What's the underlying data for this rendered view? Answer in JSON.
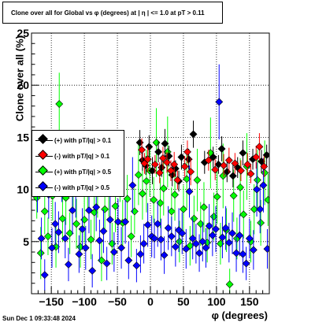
{
  "title": "Clone  over all for Global vs φ  (degrees) at |  η  | <= 1.0 at pT > 0.11",
  "timestamp": "Sun Dec  1 09:33:48 2024",
  "chart_data": {
    "type": "scatter",
    "xlabel": "φ (degrees)",
    "ylabel": "Clone  over all (%)",
    "xlim": [
      -180,
      180
    ],
    "ylim": [
      0,
      25
    ],
    "x_ticks": [
      -150,
      -100,
      -50,
      0,
      50,
      100,
      150
    ],
    "x_tick_labels": [
      "−150",
      "−100",
      "−50",
      "0",
      "50",
      "100",
      "150"
    ],
    "y_ticks": [
      5,
      10,
      15,
      20,
      25
    ],
    "y_tick_labels": [
      "5",
      "10",
      "15",
      "20",
      "25"
    ],
    "grid": true,
    "legend_position": "left-middle",
    "series": [
      {
        "name": "(+) with pT/|q| > 0.1",
        "color": "#000000",
        "points": [
          [
            -7,
            12.3,
            0.9
          ],
          [
            -2,
            14.1,
            1.1
          ],
          [
            -12,
            12.8,
            1.0
          ],
          [
            -16,
            14.5,
            1.2
          ],
          [
            3,
            11.8,
            1.3
          ],
          [
            12,
            13.6,
            1.0
          ],
          [
            17,
            12.1,
            0.9
          ],
          [
            22,
            14.4,
            1.4
          ],
          [
            28,
            13.2,
            1.0
          ],
          [
            33,
            11.4,
            1.1
          ],
          [
            38,
            12.0,
            0.8
          ],
          [
            43,
            10.8,
            1.0
          ],
          [
            47,
            13.1,
            1.2
          ],
          [
            58,
            12.9,
            1.0
          ],
          [
            65,
            15.3,
            1.3
          ],
          [
            82,
            12.6,
            1.1
          ],
          [
            95,
            13.1,
            1.0
          ],
          [
            103,
            12.4,
            0.9
          ],
          [
            108,
            13.9,
            1.2
          ],
          [
            116,
            11.7,
            1.0
          ],
          [
            125,
            11.3,
            1.1
          ],
          [
            132,
            12.1,
            1.0
          ],
          [
            140,
            13.5,
            1.2
          ],
          [
            155,
            12.9,
            1.0
          ],
          [
            168,
            12.7,
            1.1
          ],
          [
            176,
            13.3,
            1.0
          ]
        ]
      },
      {
        "name": "(-) with pT/|q| > 0.1",
        "color": "#ff0000",
        "points": [
          [
            -9,
            12.5,
            1.0
          ],
          [
            -4,
            12.9,
            1.2
          ],
          [
            -13,
            13.8,
            1.1
          ],
          [
            7,
            12.4,
            0.9
          ],
          [
            14,
            11.6,
            1.0
          ],
          [
            19,
            13.0,
            1.1
          ],
          [
            25,
            12.6,
            1.0
          ],
          [
            31,
            11.8,
            1.0
          ],
          [
            36,
            12.4,
            1.2
          ],
          [
            41,
            10.9,
            0.9
          ],
          [
            52,
            12.2,
            1.0
          ],
          [
            56,
            13.6,
            1.1
          ],
          [
            61,
            11.7,
            1.3
          ],
          [
            88,
            12.8,
            1.0
          ],
          [
            98,
            11.9,
            1.0
          ],
          [
            111,
            12.3,
            1.1
          ],
          [
            119,
            12.8,
            1.2
          ],
          [
            128,
            12.5,
            1.0
          ],
          [
            137,
            11.8,
            1.0
          ],
          [
            147,
            12.4,
            1.1
          ],
          [
            152,
            11.5,
            0.9
          ],
          [
            160,
            13.1,
            1.1
          ],
          [
            165,
            14.1,
            1.3
          ],
          [
            172,
            12.2,
            1.0
          ]
        ]
      },
      {
        "name": "(+) with pT/|q| > 0.5",
        "color": "#00ff00",
        "points": [
          [
            -172,
            9.2,
            2.0
          ],
          [
            -166,
            3.9,
            2.5
          ],
          [
            -160,
            7.9,
            2.2
          ],
          [
            -155,
            5.5,
            1.8
          ],
          [
            -148,
            9.4,
            2.4
          ],
          [
            -143,
            4.5,
            2.0
          ],
          [
            -138,
            18.2,
            3.0
          ],
          [
            -133,
            7.2,
            2.2
          ],
          [
            -128,
            9.2,
            2.6
          ],
          [
            -122,
            5.8,
            2.0
          ],
          [
            -117,
            10.5,
            2.8
          ],
          [
            -112,
            6.7,
            2.4
          ],
          [
            -106,
            4.5,
            2.0
          ],
          [
            -100,
            7.1,
            2.2
          ],
          [
            -95,
            11.2,
            3.1
          ],
          [
            -90,
            5.2,
            1.9
          ],
          [
            -85,
            7.8,
            2.5
          ],
          [
            -80,
            9.9,
            2.6
          ],
          [
            -74,
            3.2,
            2.0
          ],
          [
            -69,
            8.1,
            2.3
          ],
          [
            -63,
            10.2,
            2.8
          ],
          [
            -58,
            4.8,
            2.0
          ],
          [
            -53,
            8.4,
            2.5
          ],
          [
            -46,
            12.0,
            3.2
          ],
          [
            -42,
            6.8,
            2.2
          ],
          [
            -35,
            9.1,
            2.3
          ],
          [
            -29,
            5.5,
            2.0
          ],
          [
            -24,
            7.9,
            2.2
          ],
          [
            -18,
            11.4,
            2.9
          ],
          [
            -12,
            9.6,
            2.5
          ],
          [
            -6,
            10.8,
            3.0
          ],
          [
            -1,
            11.8,
            2.5
          ],
          [
            5,
            9.0,
            2.2
          ],
          [
            9,
            14.5,
            3.3
          ],
          [
            15,
            8.7,
            2.4
          ],
          [
            20,
            10.1,
            2.6
          ],
          [
            26,
            13.6,
            3.4
          ],
          [
            32,
            7.9,
            2.3
          ],
          [
            37,
            9.5,
            2.5
          ],
          [
            44,
            5.0,
            2.0
          ],
          [
            50,
            8.1,
            2.3
          ],
          [
            55,
            11.0,
            2.8
          ],
          [
            60,
            4.6,
            1.9
          ],
          [
            66,
            7.2,
            2.2
          ],
          [
            71,
            10.9,
            3.0
          ],
          [
            76,
            6.7,
            2.1
          ],
          [
            81,
            8.3,
            2.4
          ],
          [
            86,
            4.9,
            1.9
          ],
          [
            91,
            13.5,
            3.4
          ],
          [
            96,
            7.4,
            2.3
          ],
          [
            101,
            9.3,
            2.6
          ],
          [
            106,
            4.8,
            2.0
          ],
          [
            110,
            11.3,
            3.1
          ],
          [
            115,
            6.1,
            2.1
          ],
          [
            120,
            0.9,
            1.5
          ],
          [
            126,
            9.4,
            2.5
          ],
          [
            131,
            5.3,
            2.0
          ],
          [
            136,
            10.2,
            2.8
          ],
          [
            141,
            7.6,
            2.3
          ],
          [
            146,
            12.2,
            3.2
          ],
          [
            152,
            5.0,
            2.0
          ],
          [
            157,
            8.1,
            2.4
          ],
          [
            162,
            10.9,
            2.9
          ],
          [
            167,
            6.8,
            2.2
          ],
          [
            173,
            11.6,
            3.1
          ],
          [
            178,
            9.0,
            2.5
          ]
        ]
      },
      {
        "name": "(-) with pT/|q| > 0.5",
        "color": "#0000ff",
        "points": [
          [
            -171,
            10.2,
            2.4
          ],
          [
            -165,
            5.3,
            2.0
          ],
          [
            -160,
            1.8,
            1.5
          ],
          [
            -154,
            9.5,
            2.3
          ],
          [
            -149,
            4.4,
            1.9
          ],
          [
            -144,
            6.7,
            2.1
          ],
          [
            -139,
            5.9,
            2.0
          ],
          [
            -134,
            11.6,
            2.8
          ],
          [
            -129,
            5.3,
            1.9
          ],
          [
            -124,
            2.8,
            1.6
          ],
          [
            -118,
            8.0,
            2.3
          ],
          [
            -113,
            9.9,
            2.6
          ],
          [
            -108,
            3.8,
            1.8
          ],
          [
            -103,
            6.2,
            2.0
          ],
          [
            -98,
            4.4,
            2.1
          ],
          [
            -93,
            8.0,
            2.2
          ],
          [
            -88,
            2.2,
            1.6
          ],
          [
            -82,
            8.3,
            2.3
          ],
          [
            -77,
            5.1,
            2.0
          ],
          [
            -71,
            6.0,
            2.1
          ],
          [
            -66,
            2.9,
            1.6
          ],
          [
            -61,
            7.1,
            2.2
          ],
          [
            -55,
            4.0,
            1.9
          ],
          [
            -49,
            6.9,
            2.2
          ],
          [
            -44,
            4.4,
            2.0
          ],
          [
            -38,
            6.9,
            2.1
          ],
          [
            -33,
            3.2,
            1.8
          ],
          [
            -27,
            10.4,
            2.7
          ],
          [
            -21,
            2.7,
            1.6
          ],
          [
            -15,
            3.8,
            1.8
          ],
          [
            -10,
            4.8,
            1.9
          ],
          [
            -4,
            6.6,
            2.1
          ],
          [
            2,
            5.5,
            2.0
          ],
          [
            6,
            5.3,
            1.9
          ],
          [
            11,
            6.7,
            2.2
          ],
          [
            16,
            5.2,
            2.0
          ],
          [
            21,
            3.7,
            1.8
          ],
          [
            27,
            6.3,
            2.1
          ],
          [
            32,
            5.5,
            1.9
          ],
          [
            38,
            4.5,
            1.9
          ],
          [
            43,
            6.1,
            2.1
          ],
          [
            48,
            5.8,
            2.0
          ],
          [
            54,
            4.3,
            1.9
          ],
          [
            59,
            9.8,
            2.5
          ],
          [
            64,
            5.3,
            2.0
          ],
          [
            69,
            4.8,
            1.9
          ],
          [
            74,
            3.9,
            1.8
          ],
          [
            79,
            5.0,
            1.9
          ],
          [
            84,
            4.4,
            1.9
          ],
          [
            89,
            6.5,
            2.1
          ],
          [
            94,
            5.6,
            2.0
          ],
          [
            99,
            6.2,
            2.2
          ],
          [
            104,
            18.4,
            3.6
          ],
          [
            109,
            5.4,
            2.0
          ],
          [
            114,
            6.3,
            2.1
          ],
          [
            119,
            4.9,
            1.9
          ],
          [
            124,
            5.8,
            2.0
          ],
          [
            130,
            3.9,
            1.8
          ],
          [
            135,
            5.6,
            2.0
          ],
          [
            140,
            3.8,
            1.8
          ],
          [
            145,
            2.9,
            1.6
          ],
          [
            150,
            5.3,
            1.9
          ],
          [
            156,
            4.2,
            1.9
          ],
          [
            161,
            10.0,
            2.6
          ],
          [
            166,
            8.1,
            2.3
          ],
          [
            171,
            10.4,
            2.6
          ],
          [
            177,
            4.3,
            1.9
          ]
        ]
      }
    ]
  }
}
